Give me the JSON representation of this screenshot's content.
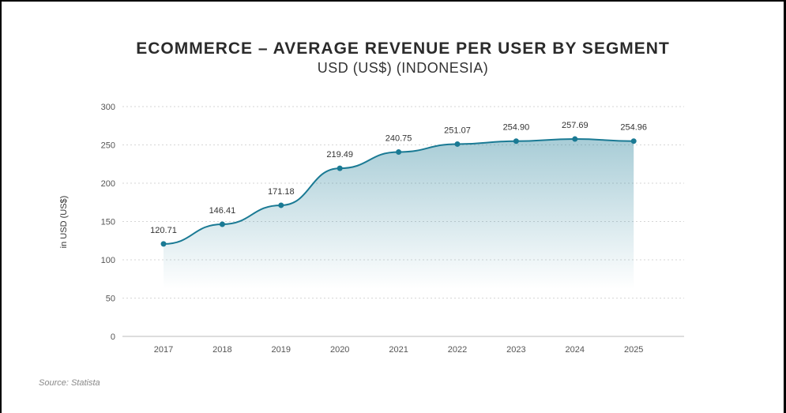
{
  "chart_data": {
    "type": "line",
    "title": "ECOMMERCE – AVERAGE REVENUE PER USER BY SEGMENT",
    "subtitle": "USD (US$) (INDONESIA)",
    "xlabel": "",
    "ylabel": "in USD (US$)",
    "categories": [
      "2017",
      "2018",
      "2019",
      "2020",
      "2021",
      "2022",
      "2023",
      "2024",
      "2025"
    ],
    "values": [
      120.71,
      146.41,
      171.18,
      219.49,
      240.75,
      251.07,
      254.9,
      257.69,
      254.96
    ],
    "data_labels": [
      "120.71",
      "146.41",
      "171.18",
      "219.49",
      "240.75",
      "251.07",
      "254.90",
      "257.69",
      "254.96"
    ],
    "ylim": [
      0,
      300
    ],
    "yticks": [
      0,
      50,
      100,
      150,
      200,
      250,
      300
    ],
    "grid": true,
    "legend": "none",
    "line_color": "#1a7a94",
    "area_fill": "gradient"
  },
  "source": "Source: Statista"
}
